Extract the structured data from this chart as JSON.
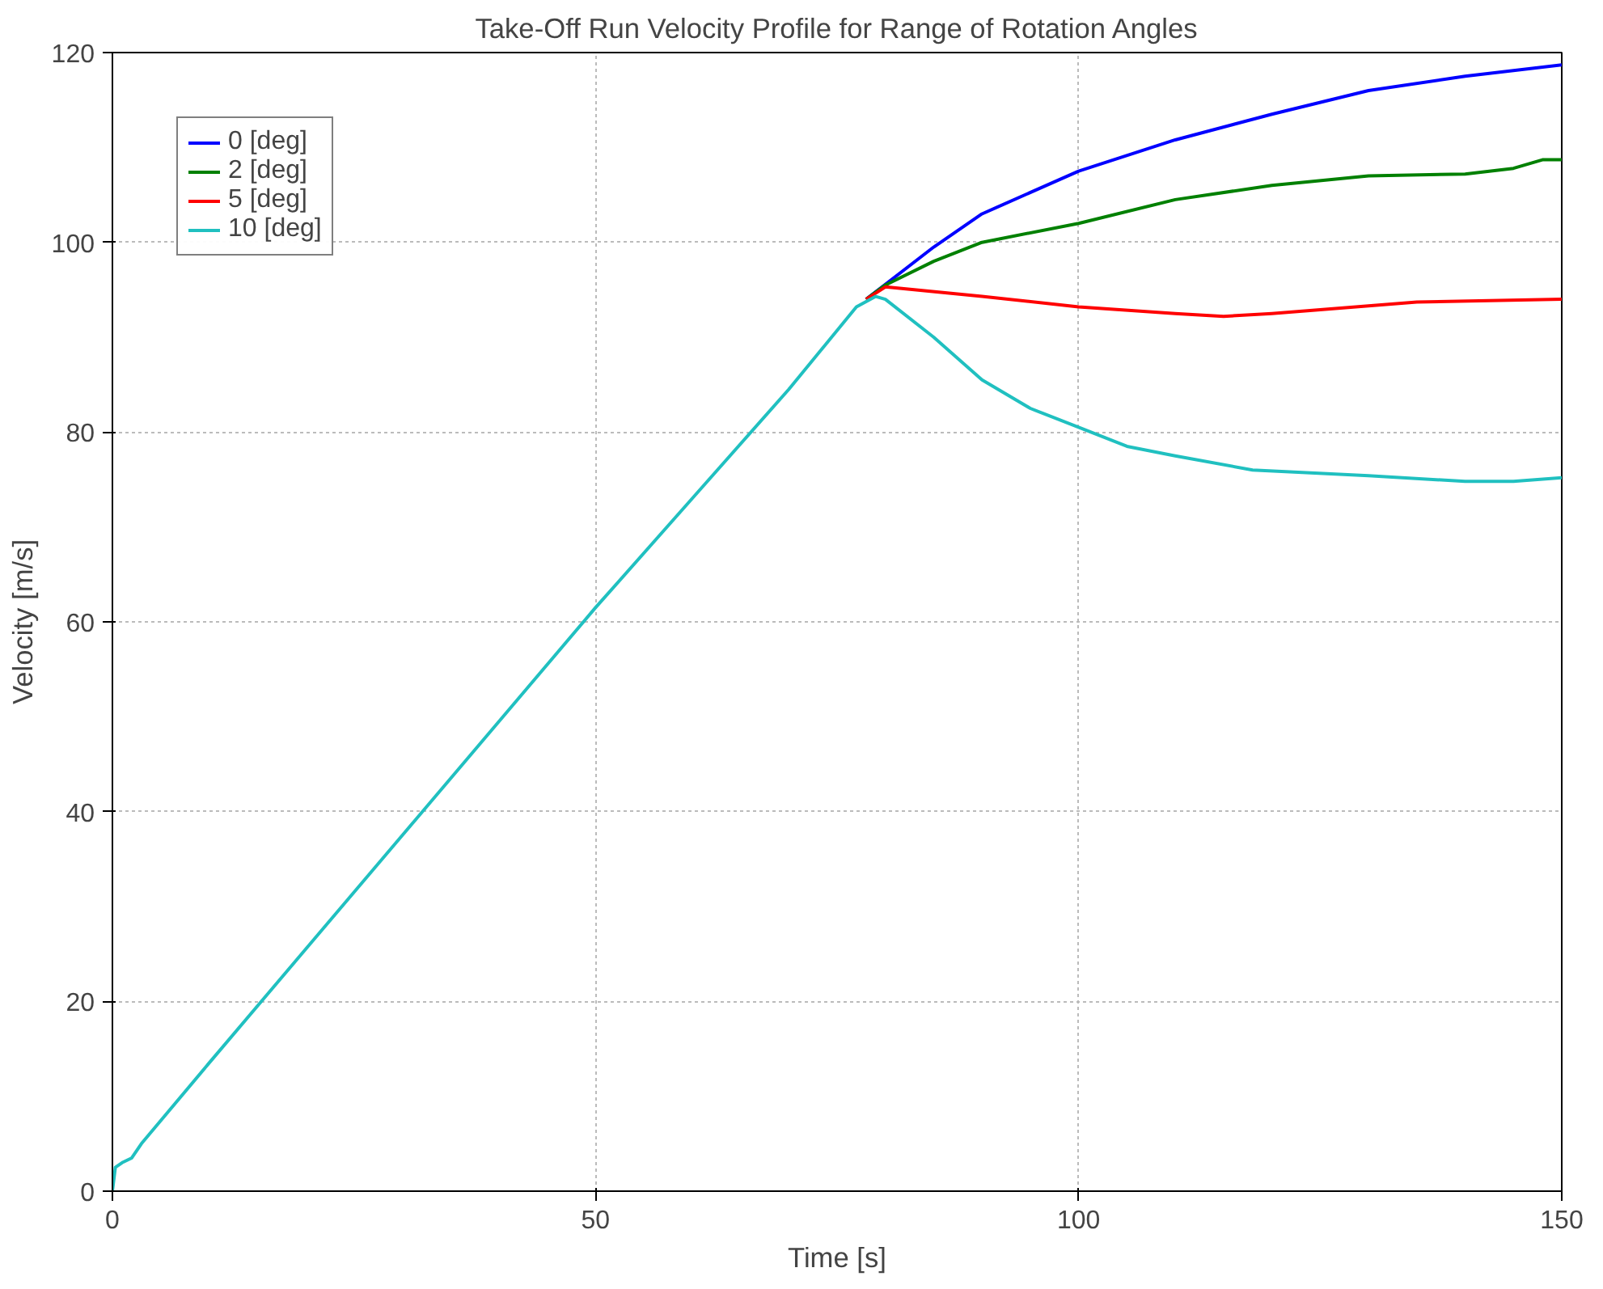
{
  "chart_data": {
    "type": "line",
    "title": "Take-Off Run Velocity Profile for Range of Rotation Angles",
    "xlabel": "Time [s]",
    "ylabel": "Velocity [m/s]",
    "xlim": [
      0,
      150
    ],
    "ylim": [
      0,
      120
    ],
    "xticks": [
      0,
      50,
      100,
      150
    ],
    "yticks": [
      0,
      20,
      40,
      60,
      80,
      100,
      120
    ],
    "grid": true,
    "legend": "top left",
    "line_style": "solid",
    "series": [
      {
        "name": "0 [deg]",
        "color": "#0000ff",
        "x": [
          78,
          85,
          90,
          100,
          110,
          120,
          130,
          140,
          150
        ],
        "values": [
          94,
          99.5,
          103,
          107.5,
          110.8,
          113.5,
          116,
          117.5,
          118.7
        ]
      },
      {
        "name": "2 [deg]",
        "color": "#008000",
        "x": [
          78,
          80,
          85,
          90,
          100,
          110,
          120,
          130,
          140,
          145,
          148,
          150
        ],
        "values": [
          94,
          95.5,
          98,
          100,
          102,
          104.5,
          106,
          107,
          107.2,
          107.8,
          108.7,
          108.7
        ]
      },
      {
        "name": "5 [deg]",
        "color": "#ff0000",
        "x": [
          78,
          80,
          90,
          100,
          110,
          115,
          120,
          130,
          135,
          150
        ],
        "values": [
          94,
          95.3,
          94.3,
          93.2,
          92.5,
          92.2,
          92.5,
          93.3,
          93.7,
          94
        ]
      },
      {
        "name": "10 [deg]",
        "color": "#20c0c0",
        "x": [
          0,
          0.3,
          1,
          2,
          3,
          10,
          20,
          30,
          40,
          50,
          60,
          70,
          77,
          79,
          80,
          85,
          90,
          95,
          100,
          105,
          110,
          118,
          130,
          140,
          145,
          150
        ],
        "values": [
          0,
          2.5,
          3,
          3.5,
          5,
          13.5,
          25.5,
          37.5,
          49.5,
          61.5,
          73,
          84.5,
          93.2,
          94.3,
          94,
          90,
          85.5,
          82.5,
          80.5,
          78.5,
          77.5,
          76,
          75.4,
          74.8,
          74.8,
          75.2
        ]
      }
    ]
  }
}
